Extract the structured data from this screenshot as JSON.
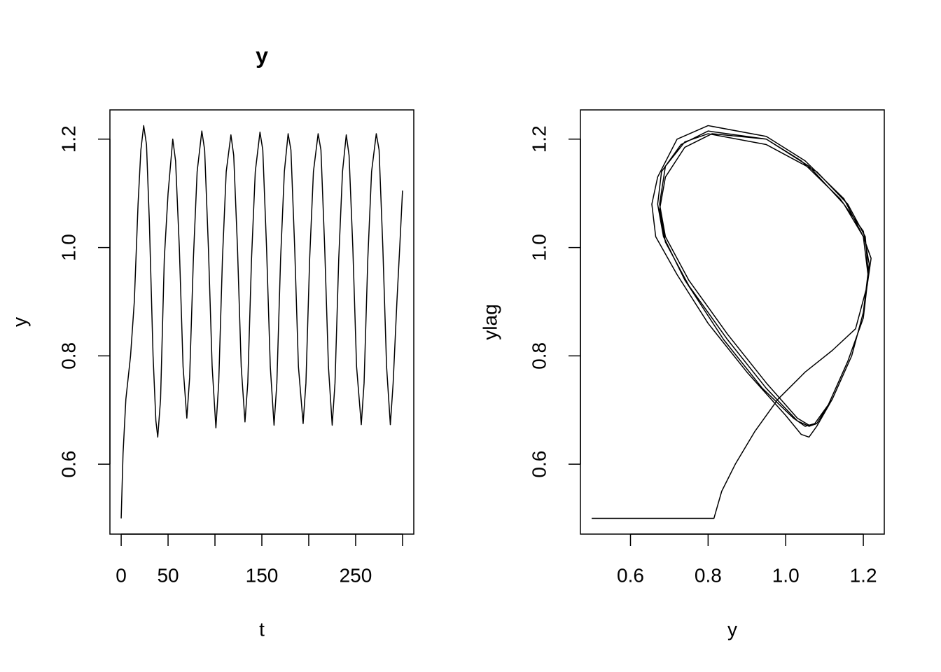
{
  "chart_data": [
    {
      "type": "line",
      "title": "y",
      "xlabel": "t",
      "ylabel": "y",
      "color": "#000000",
      "xlim": [
        -12,
        312
      ],
      "ylim": [
        0.471,
        1.254
      ],
      "xticks": [
        0,
        50,
        {
          "value": 100,
          "label": null
        },
        150,
        {
          "value": 200,
          "label": null
        },
        250,
        {
          "value": 300,
          "label": null
        }
      ],
      "yticks": [
        0.6,
        0.8,
        {
          "value": 1,
          "label": "1.0"
        },
        1.2
      ],
      "x": [
        0,
        2,
        5,
        10,
        14,
        18,
        21,
        24,
        27,
        30,
        34,
        37,
        39,
        42,
        46,
        50,
        55,
        58,
        62,
        66,
        70,
        73,
        77,
        81,
        86,
        89,
        93,
        97,
        101,
        104,
        108,
        112,
        117,
        120,
        124,
        128,
        132,
        135,
        139,
        143,
        148,
        151,
        155,
        159,
        163,
        166,
        170,
        174,
        178,
        181,
        185,
        189,
        194,
        197,
        201,
        205,
        210,
        213,
        217,
        221,
        225,
        228,
        232,
        236,
        240,
        243,
        247,
        251,
        256,
        259,
        263,
        267,
        272,
        275,
        279,
        283,
        287,
        290,
        294,
        297,
        300
      ],
      "values": [
        0.5,
        0.62,
        0.72,
        0.8,
        0.9,
        1.08,
        1.18,
        1.225,
        1.19,
        1.05,
        0.8,
        0.68,
        0.65,
        0.72,
        0.98,
        1.1,
        1.2,
        1.16,
        1.0,
        0.78,
        0.685,
        0.76,
        0.98,
        1.14,
        1.215,
        1.18,
        1.0,
        0.78,
        0.667,
        0.75,
        0.98,
        1.14,
        1.208,
        1.17,
        1.0,
        0.78,
        0.678,
        0.75,
        0.98,
        1.14,
        1.213,
        1.18,
        1.0,
        0.78,
        0.672,
        0.75,
        0.98,
        1.14,
        1.21,
        1.18,
        1.0,
        0.78,
        0.675,
        0.75,
        0.98,
        1.14,
        1.21,
        1.18,
        1.0,
        0.78,
        0.672,
        0.75,
        0.98,
        1.14,
        1.208,
        1.17,
        1.0,
        0.78,
        0.673,
        0.75,
        0.98,
        1.14,
        1.21,
        1.18,
        1.0,
        0.78,
        0.673,
        0.75,
        0.9,
        1.0,
        1.105
      ]
    },
    {
      "type": "line",
      "xlabel": "y",
      "ylabel": "ylag",
      "color": "#000000",
      "xlim": [
        0.471,
        1.254
      ],
      "ylim": [
        0.471,
        1.254
      ],
      "xticks": [
        0.6,
        0.8,
        {
          "value": 1,
          "label": "1.0"
        },
        1.2
      ],
      "yticks": [
        0.6,
        0.8,
        {
          "value": 1,
          "label": "1.0"
        },
        1.2
      ],
      "x": [
        0.5,
        0.815,
        0.835,
        0.87,
        0.92,
        0.98,
        1.05,
        1.12,
        1.18,
        1.21,
        1.22,
        1.2,
        1.15,
        1.05,
        0.95,
        0.8,
        0.72,
        0.67,
        0.655,
        0.665,
        0.72,
        0.8,
        0.9,
        1.0,
        1.04,
        1.06,
        1.08,
        1.12,
        1.17,
        1.2,
        1.215,
        1.2,
        1.14,
        1.04,
        0.95,
        0.81,
        0.74,
        0.69,
        0.675,
        0.69,
        0.75,
        0.85,
        0.95,
        1.03,
        1.06,
        1.08,
        1.12,
        1.17,
        1.2,
        1.212,
        1.2,
        1.15,
        1.06,
        0.95,
        0.8,
        0.73,
        0.68,
        0.67,
        0.685,
        0.74,
        0.84,
        0.94,
        1.02,
        1.05,
        1.075,
        1.11,
        1.16,
        1.2,
        1.213,
        1.205,
        1.16,
        1.08,
        0.95,
        0.8,
        0.74,
        0.69,
        0.675,
        0.69,
        0.75,
        0.85,
        0.95,
        1.03,
        1.06,
        1.08
      ],
      "values": [
        0.5,
        0.5,
        0.55,
        0.6,
        0.66,
        0.72,
        0.77,
        0.81,
        0.85,
        0.93,
        0.98,
        1.02,
        1.09,
        1.16,
        1.205,
        1.225,
        1.2,
        1.13,
        1.08,
        1.02,
        0.95,
        0.86,
        0.77,
        0.69,
        0.655,
        0.65,
        0.67,
        0.72,
        0.8,
        0.88,
        0.97,
        1.03,
        1.09,
        1.16,
        1.2,
        1.21,
        1.185,
        1.13,
        1.07,
        1.01,
        0.93,
        0.83,
        0.74,
        0.68,
        0.67,
        0.675,
        0.72,
        0.8,
        0.88,
        0.95,
        1.02,
        1.08,
        1.15,
        1.2,
        1.215,
        1.19,
        1.14,
        1.08,
        1.02,
        0.94,
        0.83,
        0.74,
        0.685,
        0.67,
        0.675,
        0.71,
        0.79,
        0.87,
        0.95,
        1.02,
        1.08,
        1.14,
        1.19,
        1.21,
        1.195,
        1.15,
        1.08,
        1.02,
        0.94,
        0.84,
        0.75,
        0.685,
        0.672,
        0.675
      ]
    }
  ]
}
